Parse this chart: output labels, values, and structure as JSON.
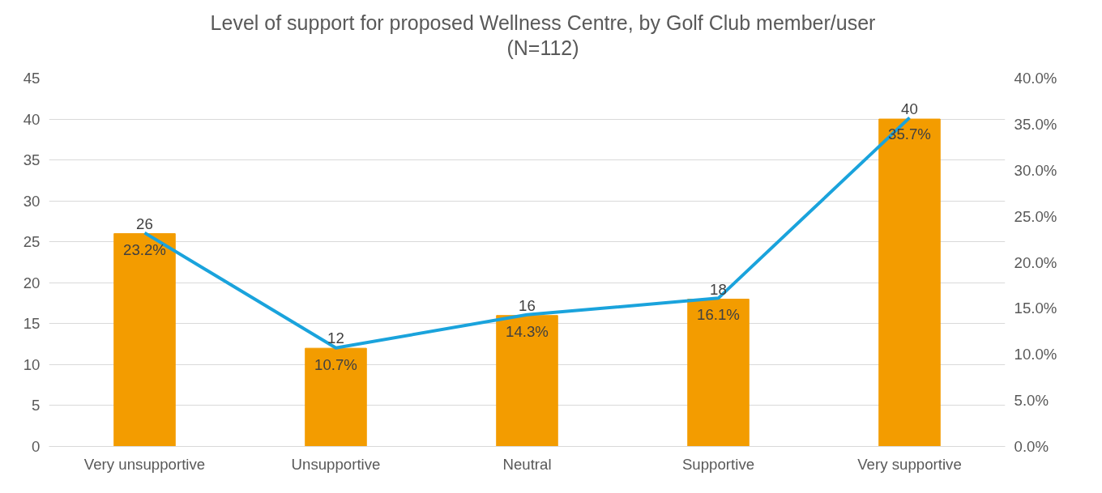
{
  "chart_data": {
    "type": "bar",
    "title": "Level of support for proposed Wellness Centre, by Golf Club member/user\n(N=112)",
    "categories": [
      "Very unsupportive",
      "Unsupportive",
      "Neutral",
      "Supportive",
      "Very supportive"
    ],
    "series": [
      {
        "color": "#f39c00",
        "values": [
          26,
          12,
          16,
          18,
          40
        ],
        "value_labels": [
          "26",
          "12",
          "16",
          "18",
          "40"
        ]
      },
      {
        "type": "line",
        "axis": "y2",
        "color": "#1aa3dc",
        "values": [
          23.2,
          10.7,
          14.3,
          16.1,
          35.7
        ],
        "value_labels": [
          "23.2%",
          "10.7%",
          "14.3%",
          "16.1%",
          "35.7%"
        ]
      }
    ],
    "ylim": [
      0,
      45
    ],
    "yticks": [
      0,
      5,
      10,
      15,
      20,
      25,
      30,
      35,
      40,
      45
    ],
    "y2lim": [
      0,
      40
    ],
    "y2ticks": [
      {
        "value": 0,
        "label": "0.0%"
      },
      {
        "value": 5,
        "label": "5.0%"
      },
      {
        "value": 10,
        "label": "10.0%"
      },
      {
        "value": 15,
        "label": "15.0%"
      },
      {
        "value": 20,
        "label": "20.0%"
      },
      {
        "value": 25,
        "label": "25.0%"
      },
      {
        "value": 30,
        "label": "30.0%"
      },
      {
        "value": 35,
        "label": "35.0%"
      },
      {
        "value": 40,
        "label": "40.0%"
      }
    ],
    "grid": "y",
    "marker": "none",
    "line_style": "solid"
  }
}
